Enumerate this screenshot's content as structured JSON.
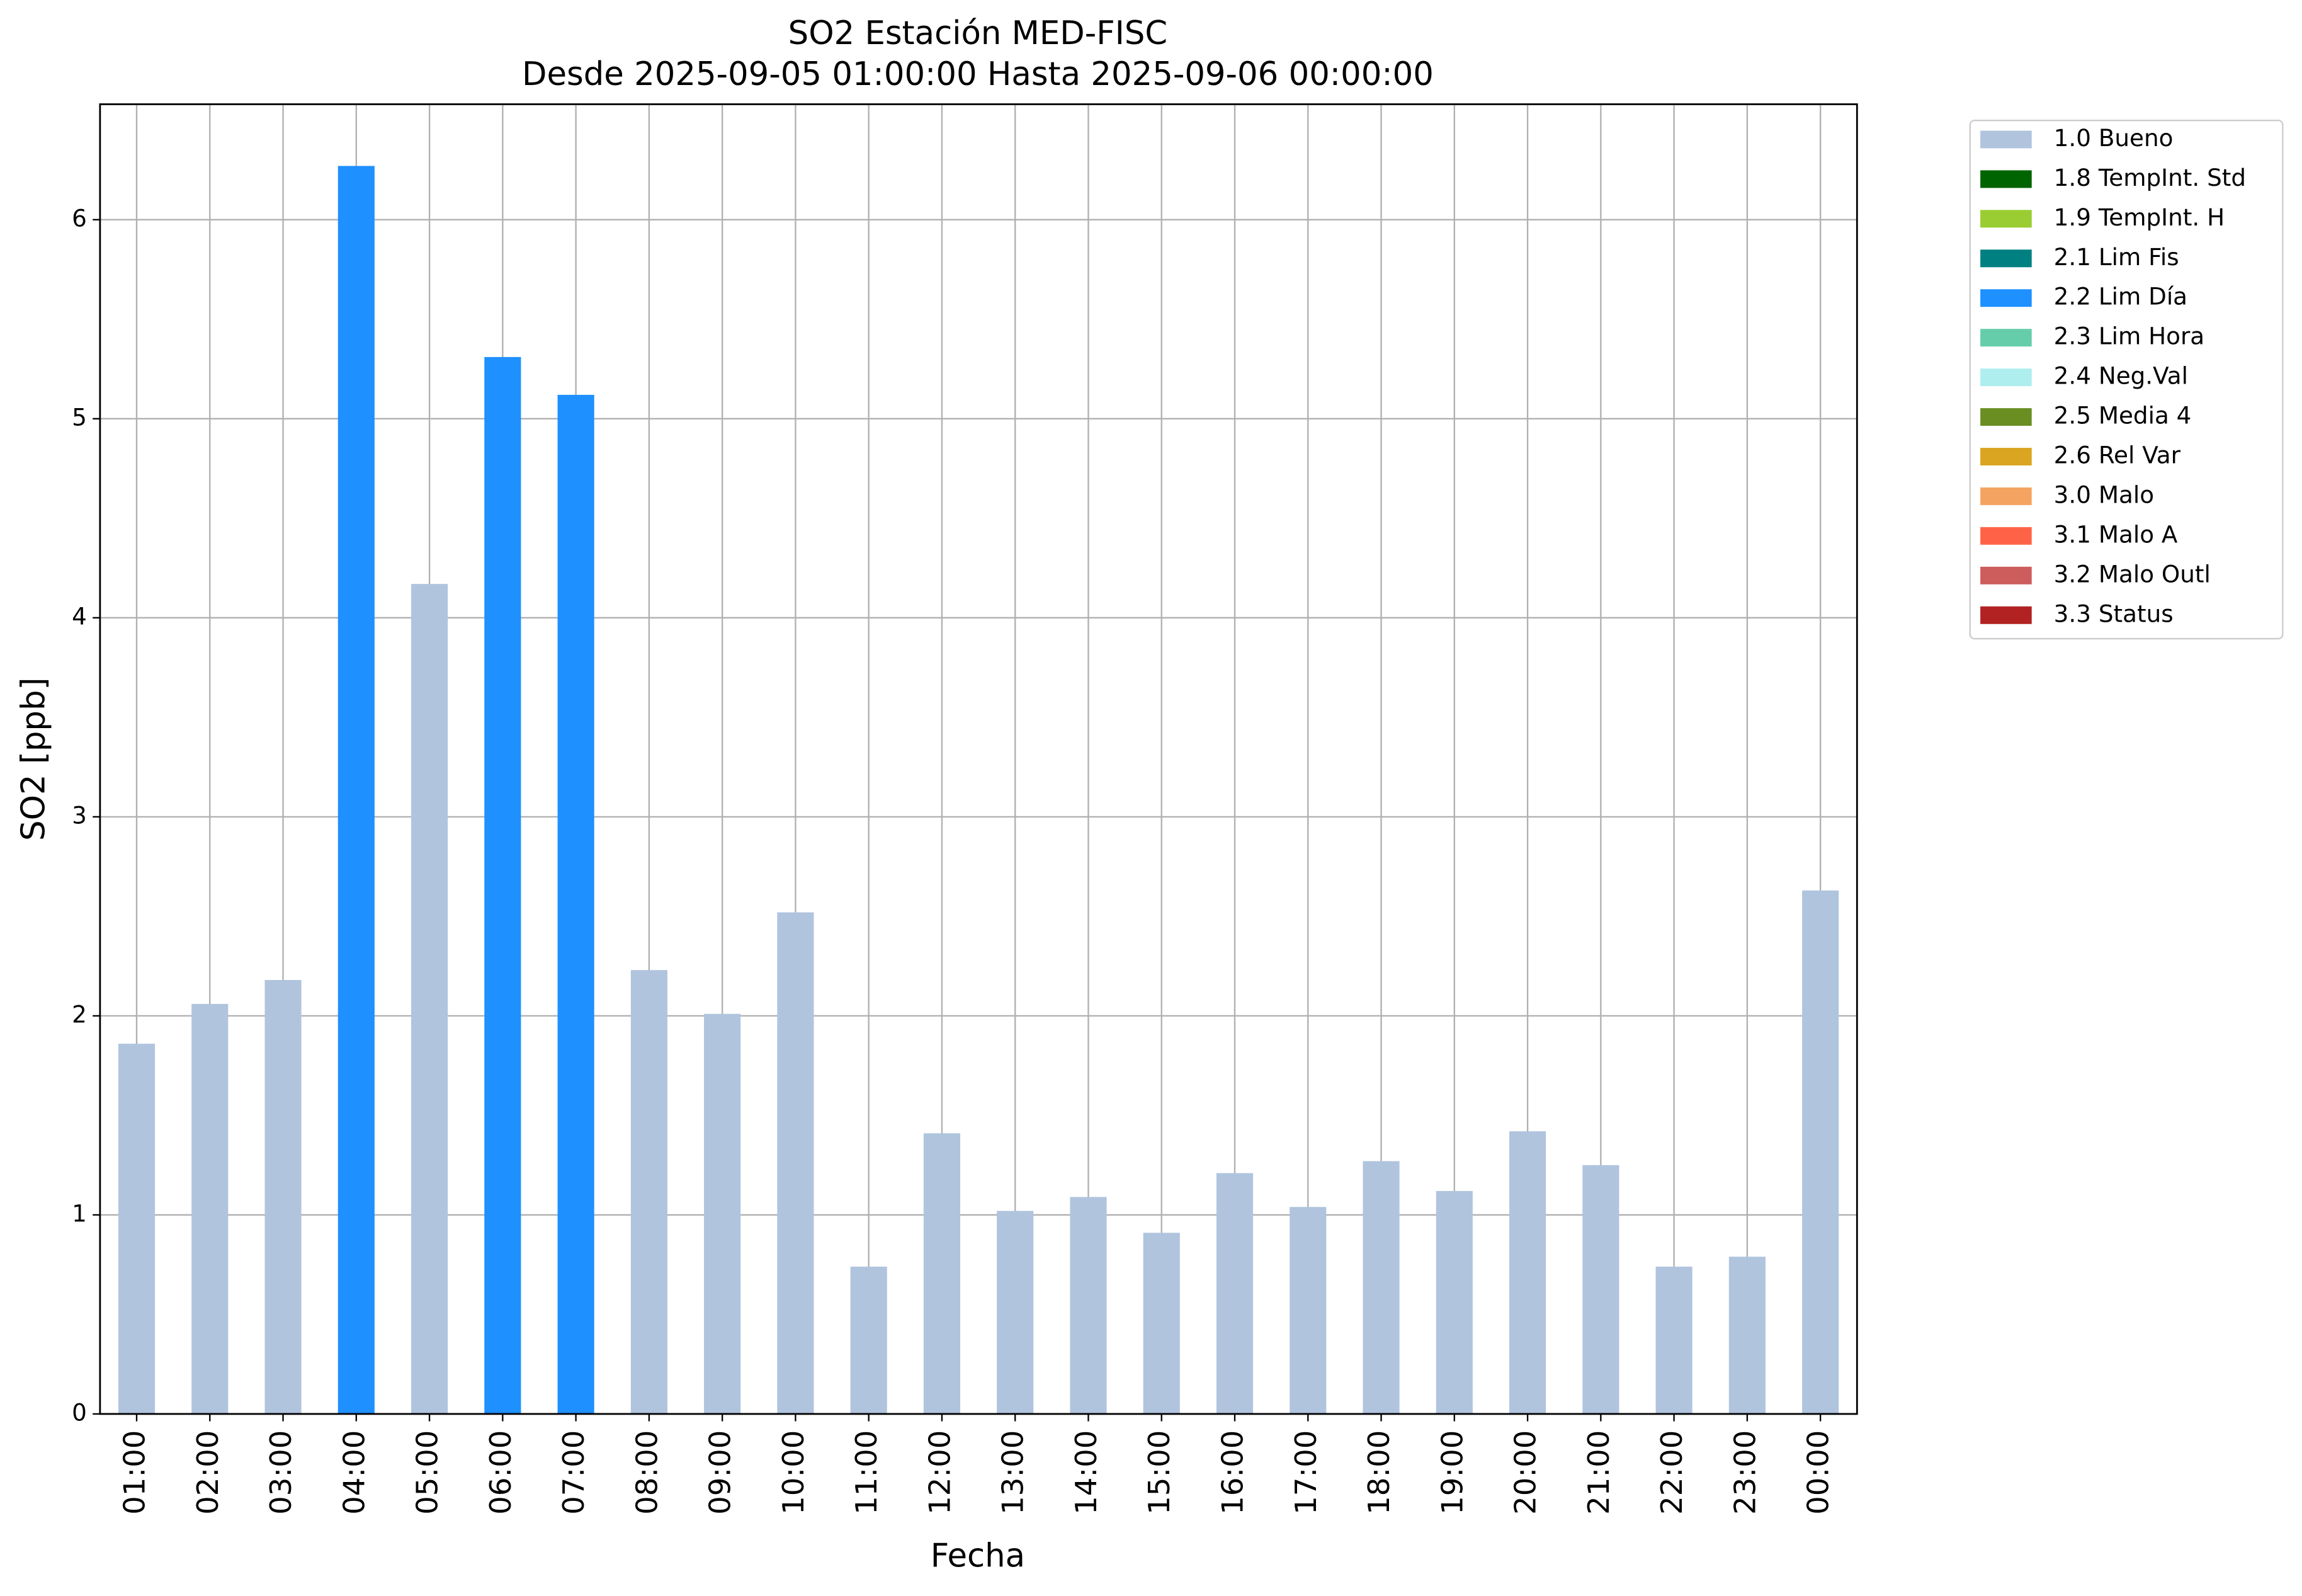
{
  "chart_data": {
    "type": "bar",
    "stacked": true,
    "title": "SO2 Estación MED-FISC",
    "subtitle": "Desde 2025-09-05 01:00:00 Hasta 2025-09-06 00:00:00",
    "xlabel": "Fecha",
    "ylabel": "SO2 [ppb]",
    "categories": [
      "01:00",
      "02:00",
      "03:00",
      "04:00",
      "05:00",
      "06:00",
      "07:00",
      "08:00",
      "09:00",
      "10:00",
      "11:00",
      "12:00",
      "13:00",
      "14:00",
      "15:00",
      "16:00",
      "17:00",
      "18:00",
      "19:00",
      "20:00",
      "21:00",
      "22:00",
      "23:00",
      "00:00"
    ],
    "series": [
      {
        "name": "1.0 Bueno",
        "color": "#b0c4de",
        "values": [
          1.86,
          2.06,
          2.18,
          null,
          4.17,
          null,
          null,
          2.23,
          2.01,
          2.52,
          0.74,
          1.41,
          1.02,
          1.09,
          0.91,
          1.21,
          1.04,
          1.27,
          1.12,
          1.42,
          1.25,
          0.74,
          0.79,
          2.63
        ]
      },
      {
        "name": "1.8 TempInt. Std",
        "color": "#006400",
        "values": [
          null,
          null,
          null,
          null,
          null,
          null,
          null,
          null,
          null,
          null,
          null,
          null,
          null,
          null,
          null,
          null,
          null,
          null,
          null,
          null,
          null,
          null,
          null,
          null
        ]
      },
      {
        "name": "1.9 TempInt. H",
        "color": "#9acd32",
        "values": [
          null,
          null,
          null,
          null,
          null,
          null,
          null,
          null,
          null,
          null,
          null,
          null,
          null,
          null,
          null,
          null,
          null,
          null,
          null,
          null,
          null,
          null,
          null,
          null
        ]
      },
      {
        "name": "2.1 Lim Fis",
        "color": "#008080",
        "values": [
          null,
          null,
          null,
          null,
          null,
          null,
          null,
          null,
          null,
          null,
          null,
          null,
          null,
          null,
          null,
          null,
          null,
          null,
          null,
          null,
          null,
          null,
          null,
          null
        ]
      },
      {
        "name": "2.2 Lim Día",
        "color": "#1e90ff",
        "values": [
          null,
          null,
          null,
          6.27,
          null,
          5.31,
          5.12,
          null,
          null,
          null,
          null,
          null,
          null,
          null,
          null,
          null,
          null,
          null,
          null,
          null,
          null,
          null,
          null,
          null
        ]
      },
      {
        "name": "2.3 Lim Hora",
        "color": "#66cdaa",
        "values": [
          null,
          null,
          null,
          null,
          null,
          null,
          null,
          null,
          null,
          null,
          null,
          null,
          null,
          null,
          null,
          null,
          null,
          null,
          null,
          null,
          null,
          null,
          null,
          null
        ]
      },
      {
        "name": "2.4 Neg.Val",
        "color": "#afeeee",
        "values": [
          null,
          null,
          null,
          null,
          null,
          null,
          null,
          null,
          null,
          null,
          null,
          null,
          null,
          null,
          null,
          null,
          null,
          null,
          null,
          null,
          null,
          null,
          null,
          null
        ]
      },
      {
        "name": "2.5 Media 4",
        "color": "#6b8e23",
        "values": [
          null,
          null,
          null,
          null,
          null,
          null,
          null,
          null,
          null,
          null,
          null,
          null,
          null,
          null,
          null,
          null,
          null,
          null,
          null,
          null,
          null,
          null,
          null,
          null
        ]
      },
      {
        "name": "2.6 Rel Var",
        "color": "#daa520",
        "values": [
          null,
          null,
          null,
          null,
          null,
          null,
          null,
          null,
          null,
          null,
          null,
          null,
          null,
          null,
          null,
          null,
          null,
          null,
          null,
          null,
          null,
          null,
          null,
          null
        ]
      },
      {
        "name": "3.0 Malo",
        "color": "#f4a460",
        "values": [
          null,
          null,
          null,
          null,
          null,
          null,
          null,
          null,
          null,
          null,
          null,
          null,
          null,
          null,
          null,
          null,
          null,
          null,
          null,
          null,
          null,
          null,
          null,
          null
        ]
      },
      {
        "name": "3.1 Malo A",
        "color": "#ff6347",
        "values": [
          null,
          null,
          null,
          null,
          null,
          null,
          null,
          null,
          null,
          null,
          null,
          null,
          null,
          null,
          null,
          null,
          null,
          null,
          null,
          null,
          null,
          null,
          null,
          null
        ]
      },
      {
        "name": "3.2 Malo Outl",
        "color": "#cd5c5c",
        "values": [
          null,
          null,
          null,
          null,
          null,
          null,
          null,
          null,
          null,
          null,
          null,
          null,
          null,
          null,
          null,
          null,
          null,
          null,
          null,
          null,
          null,
          null,
          null,
          null
        ]
      },
      {
        "name": "3.3 Status",
        "color": "#b22222",
        "values": [
          null,
          null,
          null,
          null,
          null,
          null,
          null,
          null,
          null,
          null,
          null,
          null,
          null,
          null,
          null,
          null,
          null,
          null,
          null,
          null,
          null,
          null,
          null,
          null
        ]
      }
    ],
    "ylim": [
      0,
      6.58
    ],
    "yticks": [
      0,
      1,
      2,
      3,
      4,
      5,
      6
    ],
    "grid": true,
    "legend": "outside-right"
  }
}
